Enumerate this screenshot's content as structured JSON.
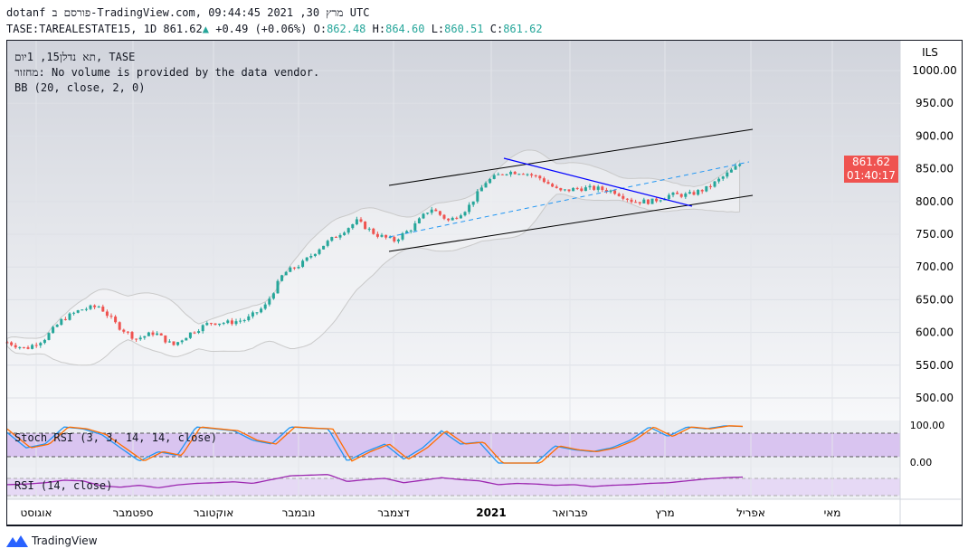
{
  "header": {
    "line1": "dotanf פורסם ב-TradingView.com, מרץ 30, 2021 09:44:45 UTC",
    "symbol": "TASE:TAREALESTATE15, 1D 861.62",
    "change": "+0.49 (+0.06%)",
    "o_label": "O:",
    "o": "862.48",
    "h_label": "H:",
    "h": "864.60",
    "l_label": "L:",
    "l": "860.51",
    "c_label": "C:",
    "c": "861.62"
  },
  "legend": {
    "title": "תא נדלן15, 1יום, TASE",
    "volume": "מחזור: No volume is provided by the data vendor.",
    "bb": "BB (20, close, 2, 0)",
    "stoch": "Stoch RSI (3, 3, 14, 14, close)",
    "rsi": "RSI (14, close)"
  },
  "price_label": {
    "value": "861.62",
    "countdown": "01:40:17"
  },
  "branding": "TradingView",
  "colors": {
    "up": "#26a69a",
    "down": "#ef5350",
    "bb": "#c9c9c9",
    "stoch_k": "#2196f3",
    "stoch_d": "#ff6d00",
    "rsi": "#9c27b0",
    "trend": "#0000ff"
  },
  "chart_data": {
    "type": "candlestick",
    "currency": "ILS",
    "y_ticks": [
      "1000.00",
      "950.00",
      "900.00",
      "850.00",
      "800.00",
      "750.00",
      "700.00",
      "650.00",
      "600.00",
      "550.00",
      "500.00"
    ],
    "ylim": [
      500,
      1000
    ],
    "x_ticks": [
      "אוגוסט",
      "ספטמבר",
      "אוקטובר",
      "נובמבר",
      "דצמבר",
      "2021",
      "פברואר",
      "מרץ",
      "אפריל",
      "מאי"
    ],
    "close_approx": [
      585,
      575,
      590,
      620,
      635,
      640,
      610,
      590,
      600,
      580,
      600,
      615,
      615,
      620,
      640,
      690,
      705,
      730,
      750,
      770,
      750,
      740,
      760,
      790,
      770,
      790,
      830,
      845,
      845,
      835,
      815,
      820,
      820,
      815,
      800,
      800,
      810,
      810,
      820,
      840,
      861.62
    ],
    "stoch_ticks": [
      "100.00",
      "0.00"
    ],
    "stoch_k_approx": [
      80,
      40,
      50,
      95,
      90,
      75,
      40,
      5,
      30,
      20,
      95,
      90,
      85,
      60,
      50,
      95,
      92,
      90,
      5,
      30,
      50,
      10,
      40,
      85,
      50,
      55,
      0,
      0,
      0,
      45,
      35,
      30,
      40,
      60,
      95,
      70,
      95,
      90,
      98,
      96
    ],
    "rsi_approx": [
      46,
      48,
      52,
      60,
      58,
      42,
      38,
      44,
      36,
      45,
      50,
      52,
      55,
      50,
      62,
      74,
      76,
      78,
      56,
      62,
      66,
      52,
      60,
      68,
      62,
      58,
      46,
      50,
      48,
      44,
      46,
      40,
      44,
      46,
      50,
      52,
      58,
      64,
      68,
      70
    ]
  }
}
